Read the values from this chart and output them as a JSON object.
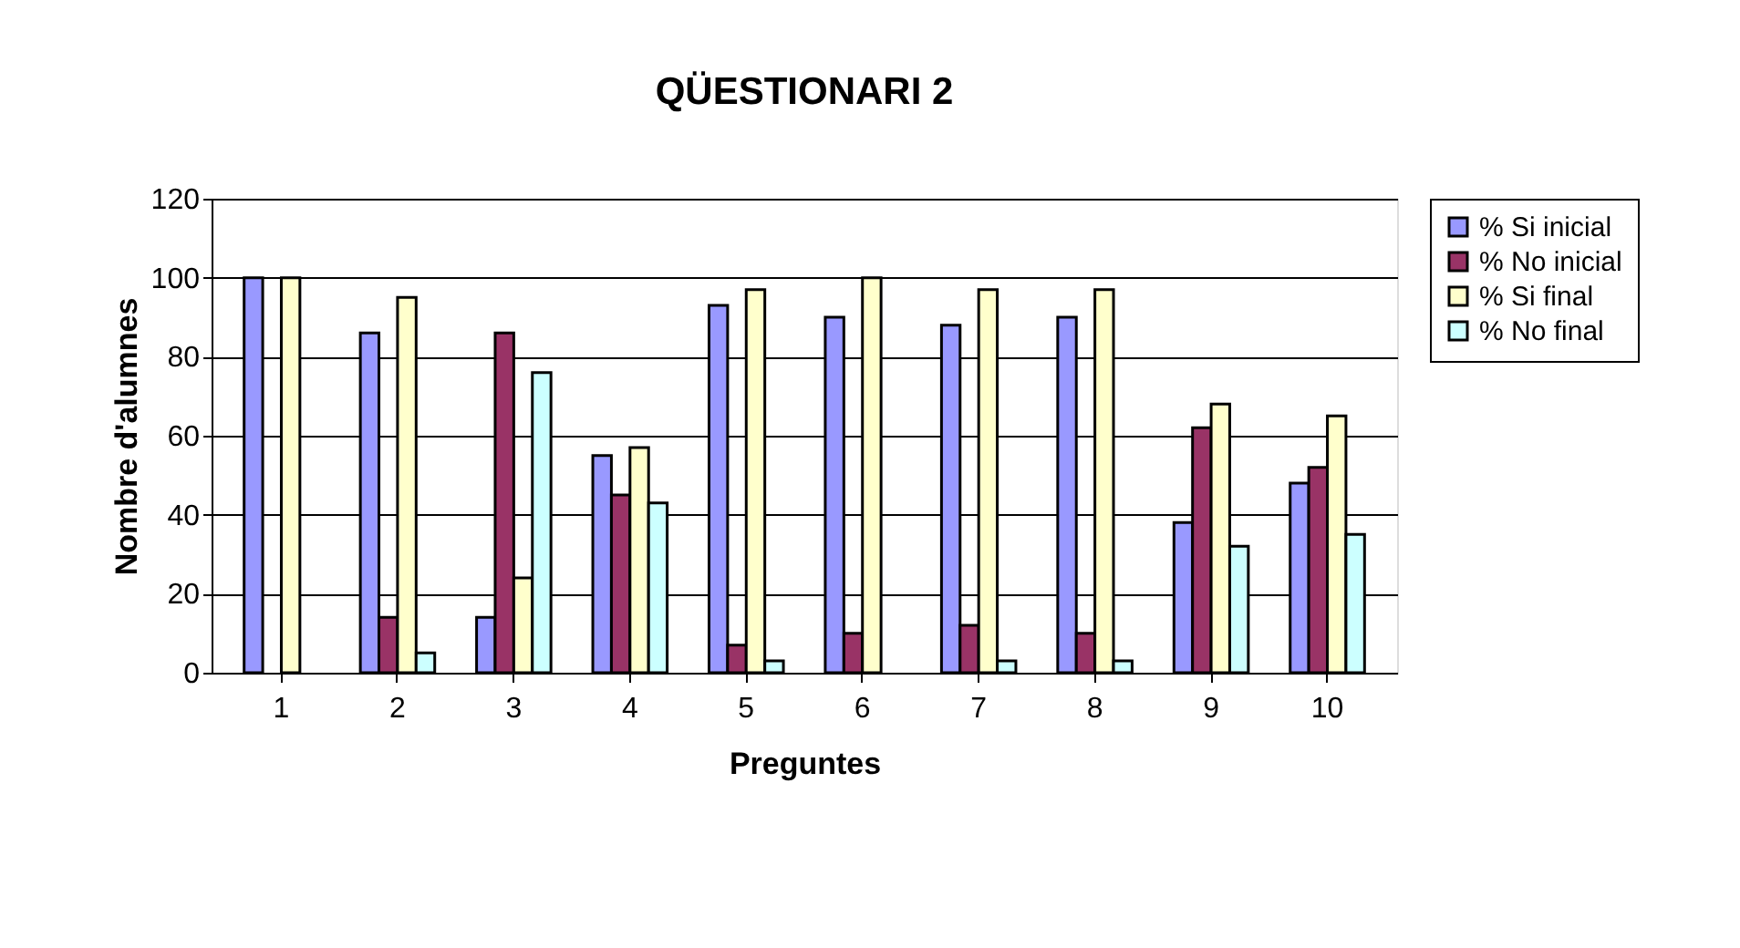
{
  "chart_data": {
    "type": "bar",
    "title": "QÜESTIONARI 2",
    "xlabel": "Preguntes",
    "ylabel": "Nombre d'alumnes",
    "categories": [
      "1",
      "2",
      "3",
      "4",
      "5",
      "6",
      "7",
      "8",
      "9",
      "10"
    ],
    "series": [
      {
        "name": "% Si inicial",
        "color": "#9999ff",
        "values": [
          100,
          86,
          14,
          55,
          93,
          90,
          88,
          90,
          38,
          48
        ]
      },
      {
        "name": "% No inicial",
        "color": "#993366",
        "values": [
          0,
          14,
          86,
          45,
          7,
          10,
          12,
          10,
          62,
          52
        ]
      },
      {
        "name": "% Si final",
        "color": "#ffffcc",
        "values": [
          100,
          95,
          24,
          57,
          97,
          100,
          97,
          97,
          68,
          65
        ]
      },
      {
        "name": "% No final",
        "color": "#ccffff",
        "values": [
          0,
          5,
          76,
          43,
          3,
          0,
          3,
          3,
          32,
          35
        ]
      }
    ],
    "ylim": [
      0,
      120
    ],
    "yticks": [
      0,
      20,
      40,
      60,
      80,
      100,
      120
    ],
    "grid": "y",
    "legend": "right"
  }
}
